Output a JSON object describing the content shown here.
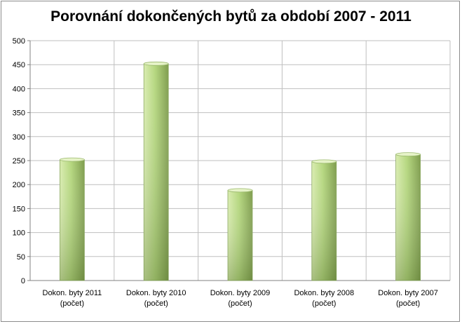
{
  "chart_data": {
    "type": "bar",
    "title": "Porovnání dokončených bytů za období 2007 - 2011",
    "categories": [
      [
        "Dokon. byty 2011",
        "(počet)"
      ],
      [
        "Dokon. byty 2010",
        "(počet)"
      ],
      [
        "Dokon. byty 2009",
        "(počet)"
      ],
      [
        "Dokon. byty 2008",
        "(počet)"
      ],
      [
        "Dokon. byty 2007",
        "(počet)"
      ]
    ],
    "values": [
      252,
      452,
      188,
      248,
      263
    ],
    "ylim": [
      0,
      500
    ],
    "yticks": [
      0,
      50,
      100,
      150,
      200,
      250,
      300,
      350,
      400,
      450,
      500
    ],
    "grid": true,
    "legend": "none",
    "colors": {
      "bar_light": "#d9ecb0",
      "bar_mid": "#b5d77f",
      "bar_dark": "#7f9d4e",
      "grid": "#bfbfbf",
      "axis": "#808080"
    }
  }
}
